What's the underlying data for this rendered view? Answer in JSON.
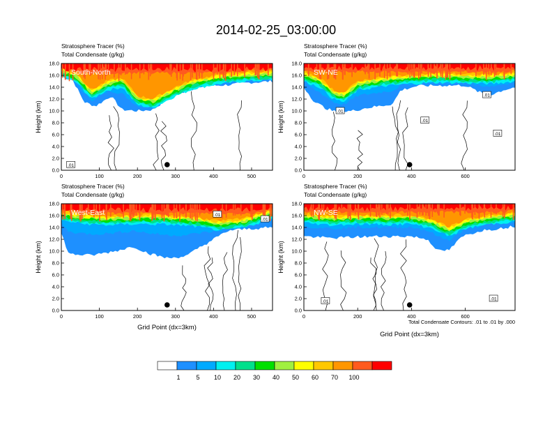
{
  "title": "2014-02-25_03:00:00",
  "colorbar": {
    "labels": [
      "1",
      "5",
      "10",
      "20",
      "30",
      "40",
      "50",
      "60",
      "70",
      "100"
    ],
    "colors": [
      "#ffffff",
      "#1e90ff",
      "#00aaff",
      "#00f0f0",
      "#00e08c",
      "#00e000",
      "#a0f040",
      "#ffff00",
      "#ffc800",
      "#ff9600",
      "#ff5a1e",
      "#ff0000"
    ]
  },
  "contour_note": "Total Condensate Contours: .01 to .01 by .000",
  "chart_data": [
    {
      "type": "contour",
      "subtitle1": "Stratosphere Tracer   (%)",
      "subtitle2": "Total Condensate   (g/kg)",
      "label": "South-North",
      "ylabel": "Height (km)",
      "xlabel": "",
      "xlim": [
        0,
        555
      ],
      "ylim": [
        0,
        18
      ],
      "xticks": [
        "0",
        "100",
        "200",
        "300",
        "400",
        "500"
      ],
      "xtick_values": [
        0,
        100,
        200,
        300,
        400,
        500
      ],
      "yticks": [
        "0.0",
        "2.0",
        "4.0",
        "6.0",
        "8.0",
        "10.0",
        "12.0",
        "14.0",
        "16.0",
        "18.0"
      ],
      "marker_x": 278,
      "contour_labels": [
        {
          "text": ".01",
          "x": 25,
          "y": 0.9
        }
      ],
      "profile": {
        "base": [
          [
            0,
            15.8
          ],
          [
            40,
            14.8
          ],
          [
            80,
            12.0
          ],
          [
            120,
            13.5
          ],
          [
            160,
            14.0
          ],
          [
            200,
            11.0
          ],
          [
            240,
            10.5
          ],
          [
            300,
            12.5
          ],
          [
            350,
            13.8
          ],
          [
            420,
            14.6
          ],
          [
            480,
            15.0
          ],
          [
            555,
            15.2
          ]
        ],
        "blue": [
          [
            0,
            15.8
          ],
          [
            30,
            15.2
          ],
          [
            60,
            11.5
          ],
          [
            90,
            10.8
          ],
          [
            130,
            12.5
          ],
          [
            160,
            10.2
          ],
          [
            200,
            10.0
          ],
          [
            240,
            10.2
          ],
          [
            280,
            12.0
          ],
          [
            330,
            13.5
          ],
          [
            380,
            14.2
          ],
          [
            440,
            14.4
          ],
          [
            500,
            14.8
          ],
          [
            555,
            15.0
          ]
        ],
        "top": 17.0
      }
    },
    {
      "type": "contour",
      "subtitle1": "Stratosphere Tracer   (%)",
      "subtitle2": "Total Condensate   (g/kg)",
      "label": "SW-NE",
      "ylabel": "Height (km)",
      "xlabel": "",
      "xlim": [
        0,
        785
      ],
      "ylim": [
        0,
        18
      ],
      "xticks": [
        "0",
        "200",
        "400",
        "600"
      ],
      "xtick_values": [
        0,
        200,
        400,
        600
      ],
      "yticks": [
        "0.0",
        "2.0",
        "4.0",
        "6.0",
        "8.0",
        "10.0",
        "12.0",
        "14.0",
        "16.0",
        "18.0"
      ],
      "marker_x": 393,
      "contour_labels": [
        {
          "text": ".01",
          "x": 135,
          "y": 10.0
        },
        {
          "text": ".01",
          "x": 450,
          "y": 8.4
        },
        {
          "text": ".01",
          "x": 680,
          "y": 12.7
        },
        {
          "text": ".01",
          "x": 720,
          "y": 6.2
        }
      ],
      "profile": {
        "base": [
          [
            0,
            15.0
          ],
          [
            60,
            14.0
          ],
          [
            110,
            12.0
          ],
          [
            150,
            11.5
          ],
          [
            200,
            13.5
          ],
          [
            300,
            14.2
          ],
          [
            400,
            14.6
          ],
          [
            500,
            14.8
          ],
          [
            600,
            14.7
          ],
          [
            700,
            14.6
          ],
          [
            785,
            15.0
          ]
        ],
        "blue": [
          [
            0,
            14.0
          ],
          [
            40,
            11.5
          ],
          [
            80,
            10.5
          ],
          [
            120,
            9.8
          ],
          [
            180,
            10.0
          ],
          [
            230,
            10.5
          ],
          [
            280,
            10.8
          ],
          [
            330,
            11.2
          ],
          [
            360,
            13.5
          ],
          [
            420,
            14.2
          ],
          [
            500,
            14.3
          ],
          [
            600,
            14.3
          ],
          [
            660,
            13.0
          ],
          [
            700,
            12.8
          ],
          [
            740,
            13.5
          ],
          [
            785,
            14.0
          ]
        ],
        "top": 17.2
      }
    },
    {
      "type": "contour",
      "subtitle1": "Stratosphere Tracer   (%)",
      "subtitle2": "Total Condensate   (g/kg)",
      "label": "West-East",
      "ylabel": "Height (km)",
      "xlabel": "Grid Point (dx=3km)",
      "xlim": [
        0,
        555
      ],
      "ylim": [
        0,
        18
      ],
      "xticks": [
        "0",
        "100",
        "200",
        "300",
        "400",
        "500"
      ],
      "xtick_values": [
        0,
        100,
        200,
        300,
        400,
        500
      ],
      "yticks": [
        "0.0",
        "2.0",
        "4.0",
        "6.0",
        "8.0",
        "10.0",
        "12.0",
        "14.0",
        "16.0",
        "18.0"
      ],
      "marker_x": 278,
      "contour_labels": [
        {
          "text": ".01",
          "x": 410,
          "y": 16.2
        },
        {
          "text": ".01",
          "x": 535,
          "y": 15.4
        }
      ],
      "profile": {
        "base": [
          [
            0,
            15.2
          ],
          [
            60,
            14.6
          ],
          [
            120,
            14.4
          ],
          [
            200,
            14.6
          ],
          [
            280,
            14.5
          ],
          [
            350,
            14.2
          ],
          [
            420,
            13.5
          ],
          [
            480,
            14.0
          ],
          [
            555,
            15.5
          ]
        ],
        "blue": [
          [
            0,
            13.0
          ],
          [
            20,
            9.5
          ],
          [
            80,
            9.3
          ],
          [
            140,
            10.0
          ],
          [
            190,
            10.8
          ],
          [
            230,
            9.6
          ],
          [
            280,
            8.8
          ],
          [
            330,
            9.2
          ],
          [
            360,
            10.5
          ],
          [
            400,
            12.0
          ],
          [
            440,
            13.5
          ],
          [
            500,
            13.8
          ],
          [
            555,
            14.0
          ]
        ],
        "top": 17.0
      }
    },
    {
      "type": "contour",
      "subtitle1": "Stratosphere Tracer   (%)",
      "subtitle2": "Total Condensate   (g/kg)",
      "label": "NW-SE",
      "ylabel": "Height (km)",
      "xlabel": "Grid Point (dx=3km)",
      "xlim": [
        0,
        785
      ],
      "ylim": [
        0,
        18
      ],
      "xticks": [
        "0",
        "200",
        "400",
        "600"
      ],
      "xtick_values": [
        0,
        200,
        400,
        600
      ],
      "yticks": [
        "0.0",
        "2.0",
        "4.0",
        "6.0",
        "8.0",
        "10.0",
        "12.0",
        "14.0",
        "16.0",
        "18.0"
      ],
      "marker_x": 393,
      "contour_labels": [
        {
          "text": ".01",
          "x": 80,
          "y": 1.6
        },
        {
          "text": ".01",
          "x": 705,
          "y": 2.0
        }
      ],
      "profile": {
        "base": [
          [
            0,
            14.8
          ],
          [
            100,
            14.4
          ],
          [
            200,
            14.6
          ],
          [
            300,
            14.5
          ],
          [
            400,
            14.6
          ],
          [
            480,
            13.8
          ],
          [
            540,
            12.5
          ],
          [
            600,
            13.8
          ],
          [
            680,
            14.5
          ],
          [
            785,
            15.0
          ]
        ],
        "blue": [
          [
            0,
            12.5
          ],
          [
            100,
            12.2
          ],
          [
            200,
            12.4
          ],
          [
            300,
            12.5
          ],
          [
            400,
            12.5
          ],
          [
            460,
            12.0
          ],
          [
            500,
            10.0
          ],
          [
            540,
            10.2
          ],
          [
            590,
            12.5
          ],
          [
            660,
            13.5
          ],
          [
            720,
            13.8
          ],
          [
            785,
            14.2
          ]
        ],
        "top": 17.2
      }
    }
  ]
}
